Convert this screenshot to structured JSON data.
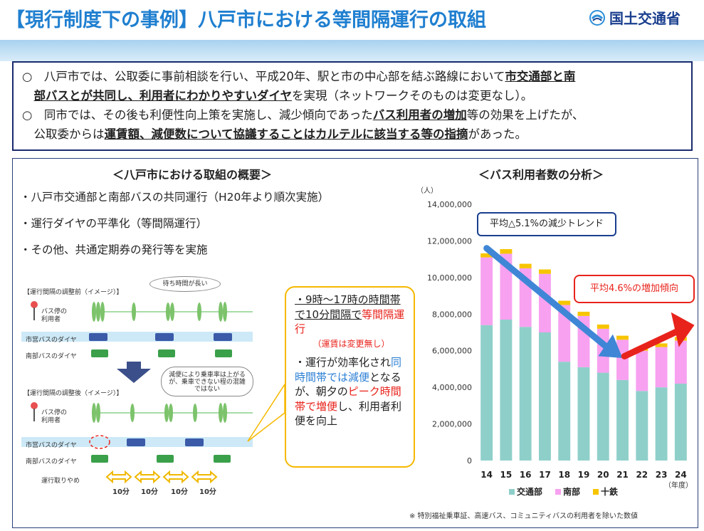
{
  "header": {
    "title": "【現行制度下の事例】八戸市における等間隔運行の取組",
    "ministry": "国土交通省"
  },
  "summary": {
    "line1_pre": "○　八戸市では、公取委に事前相談を行い、平成20年、駅と市の中心部を結ぶ路線において",
    "line1_bold": "市交通部と南",
    "line2_bold": "部バスとが共同し、利用者にわかりやすいダイヤ",
    "line2_post": "を実現（ネットワークそのものは変更なし）。",
    "line3_pre": "○　同市では、その後も利便性向上策を実施し、減少傾向であった",
    "line3_bold": "バス利用者の増加",
    "line3_post": "等の効果を上げたが、",
    "line4_pre": "　公取委からは",
    "line4_bold": "運賃額、減便数について協議することはカルテルに該当する等の指摘",
    "line4_post": "があった。"
  },
  "overview": {
    "title": "＜八戸市における取組の概要＞",
    "bullets": [
      "・八戸市交通部と南部バスの共同運行（H20年より順次実施）",
      "・運行ダイヤの平準化（等間隔運行）",
      "・その他、共通定期券の発行等を実施"
    ]
  },
  "diagram": {
    "before_label": "【運行間隔の調整前（イメージ）】",
    "after_label": "【運行間隔の調整後（イメージ）】",
    "wait_bubble": "待ち時間が長い",
    "crowd_bubble": "減便により乗車率は上がるが、乗車できない程の混雑ではない",
    "bus_stop_user": "バス停の利用者",
    "city_bus": "市営バスのダイヤ",
    "nanbu_bus": "南部バスのダイヤ",
    "cancelled": "運行取りやめ",
    "interval": "10分"
  },
  "callout": {
    "p1_a": "・9時〜17時の時間帯で10分間隔で",
    "p1_red": "等間隔運行",
    "p1_small": "（運賃は変更無し）",
    "p2_a": "・運行が効率化され",
    "p2_blue": "同時間帯では減便",
    "p2_b": "となるが、朝夕の",
    "p2_red": "ピーク時間帯で増便",
    "p2_c": "し、利用者利便を向上"
  },
  "chart_title": "＜バス利用者数の分析＞",
  "chart_data": {
    "type": "bar",
    "stacked": true,
    "unit": "（人）",
    "xlabel": "（年度）",
    "categories": [
      "14",
      "15",
      "16",
      "17",
      "18",
      "19",
      "20",
      "21",
      "22",
      "23",
      "24"
    ],
    "ylim": [
      0,
      14000000
    ],
    "yticks": [
      "0",
      "2,000,000",
      "4,000,000",
      "6,000,000",
      "8,000,000",
      "10,000,000",
      "12,000,000",
      "14,000,000"
    ],
    "series": [
      {
        "name": "交通部",
        "color": "#8fcfca",
        "values": [
          7400000,
          7700000,
          7300000,
          7000000,
          5400000,
          5100000,
          4800000,
          4400000,
          3800000,
          4000000,
          4200000
        ]
      },
      {
        "name": "南部",
        "color": "#f7a1f0",
        "values": [
          3700000,
          3600000,
          3200000,
          3200000,
          3100000,
          2800000,
          2400000,
          2200000,
          2200000,
          2200000,
          2350000
        ]
      },
      {
        "name": "十鉄",
        "color": "#f7c500",
        "values": [
          220000,
          250000,
          250000,
          240000,
          230000,
          230000,
          230000,
          220000,
          200000,
          200000,
          200000
        ]
      }
    ],
    "annotations": [
      "平均△5.1%の減少トレンド",
      "平均4.6%の増加傾向"
    ],
    "grid": false,
    "legend": "bottom"
  },
  "footnote": "※ 特別福祉乗車証、高速バス、コミュニティバスの利用者を除いた数値"
}
